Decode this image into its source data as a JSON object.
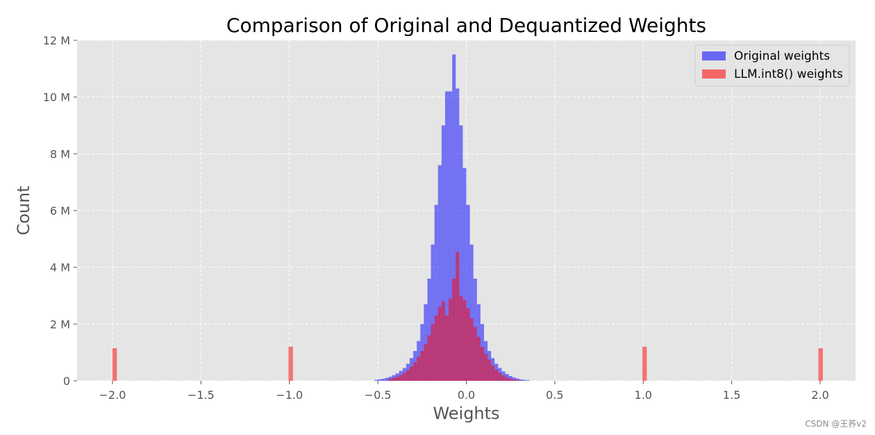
{
  "watermark": "CSDN @王荞v2",
  "chart_data": {
    "type": "histogram",
    "title": "Comparison of Original and Dequantized Weights",
    "xlabel": "Weights",
    "ylabel": "Count",
    "xlim": [
      -2.2,
      2.2
    ],
    "ylim": [
      0,
      12000000
    ],
    "x_ticks": [
      -2.0,
      -1.5,
      -1.0,
      -0.5,
      0.0,
      0.5,
      1.0,
      1.5,
      2.0
    ],
    "x_tick_labels": [
      "−2.0",
      "−1.5",
      "−1.0",
      "−0.5",
      "0.0",
      "0.5",
      "1.0",
      "1.5",
      "2.0"
    ],
    "y_ticks": [
      0,
      2000000,
      4000000,
      6000000,
      8000000,
      10000000,
      12000000
    ],
    "y_tick_labels": [
      "0",
      "2 M",
      "4 M",
      "6 M",
      "8 M",
      "10 M",
      "12 M"
    ],
    "grid": true,
    "legend_position": "top-right",
    "background": "#e5e5e5",
    "series": [
      {
        "name": "Original weights",
        "color": "#0000ff",
        "alpha": 0.5,
        "bins": [
          [
            -0.52,
            -0.5,
            0.03
          ],
          [
            -0.5,
            -0.48,
            0.05
          ],
          [
            -0.48,
            -0.46,
            0.07
          ],
          [
            -0.46,
            -0.44,
            0.1
          ],
          [
            -0.44,
            -0.42,
            0.14
          ],
          [
            -0.42,
            -0.4,
            0.2
          ],
          [
            -0.4,
            -0.38,
            0.26
          ],
          [
            -0.38,
            -0.36,
            0.35
          ],
          [
            -0.36,
            -0.34,
            0.45
          ],
          [
            -0.34,
            -0.32,
            0.6
          ],
          [
            -0.32,
            -0.3,
            0.8
          ],
          [
            -0.3,
            -0.28,
            1.05
          ],
          [
            -0.28,
            -0.26,
            1.4
          ],
          [
            -0.26,
            -0.24,
            2.0
          ],
          [
            -0.24,
            -0.22,
            2.7
          ],
          [
            -0.22,
            -0.2,
            3.6
          ],
          [
            -0.2,
            -0.18,
            4.8
          ],
          [
            -0.18,
            -0.16,
            6.2
          ],
          [
            -0.16,
            -0.14,
            7.6
          ],
          [
            -0.14,
            -0.12,
            9.0
          ],
          [
            -0.12,
            -0.1,
            10.2
          ],
          [
            -0.1,
            -0.08,
            10.2
          ],
          [
            -0.08,
            -0.06,
            11.5
          ],
          [
            -0.06,
            -0.04,
            10.3
          ],
          [
            -0.04,
            -0.02,
            9.0
          ],
          [
            -0.02,
            0.0,
            7.5
          ],
          [
            0.0,
            0.02,
            6.2
          ],
          [
            0.02,
            0.04,
            4.8
          ],
          [
            0.04,
            0.06,
            3.6
          ],
          [
            0.06,
            0.08,
            2.7
          ],
          [
            0.08,
            0.1,
            2.0
          ],
          [
            0.1,
            0.12,
            1.4
          ],
          [
            0.12,
            0.14,
            1.05
          ],
          [
            0.14,
            0.16,
            0.8
          ],
          [
            0.16,
            0.18,
            0.6
          ],
          [
            0.18,
            0.2,
            0.45
          ],
          [
            0.2,
            0.22,
            0.33
          ],
          [
            0.22,
            0.24,
            0.24
          ],
          [
            0.24,
            0.26,
            0.17
          ],
          [
            0.26,
            0.28,
            0.12
          ],
          [
            0.28,
            0.3,
            0.08
          ],
          [
            0.3,
            0.32,
            0.05
          ],
          [
            0.32,
            0.34,
            0.03
          ],
          [
            0.34,
            0.36,
            0.02
          ]
        ]
      },
      {
        "name": "LLM.int8() weights",
        "color": "#ff0000",
        "alpha": 0.5,
        "bins": [
          [
            -2.0,
            -1.975,
            1.15
          ],
          [
            -1.005,
            -0.98,
            1.2
          ],
          [
            0.995,
            1.02,
            1.2
          ],
          [
            1.99,
            2.015,
            1.15
          ],
          [
            -0.44,
            -0.42,
            0.07
          ],
          [
            -0.42,
            -0.4,
            0.1
          ],
          [
            -0.4,
            -0.38,
            0.14
          ],
          [
            -0.38,
            -0.36,
            0.2
          ],
          [
            -0.36,
            -0.34,
            0.28
          ],
          [
            -0.34,
            -0.32,
            0.38
          ],
          [
            -0.32,
            -0.3,
            0.5
          ],
          [
            -0.3,
            -0.28,
            0.65
          ],
          [
            -0.28,
            -0.26,
            0.85
          ],
          [
            -0.26,
            -0.24,
            1.05
          ],
          [
            -0.24,
            -0.22,
            1.3
          ],
          [
            -0.22,
            -0.2,
            1.6
          ],
          [
            -0.2,
            -0.18,
            2.0
          ],
          [
            -0.18,
            -0.16,
            2.3
          ],
          [
            -0.16,
            -0.14,
            2.6
          ],
          [
            -0.14,
            -0.12,
            2.8
          ],
          [
            -0.12,
            -0.1,
            2.3
          ],
          [
            -0.1,
            -0.08,
            2.9
          ],
          [
            -0.08,
            -0.06,
            3.6
          ],
          [
            -0.06,
            -0.04,
            4.55
          ],
          [
            -0.04,
            -0.02,
            3.0
          ],
          [
            -0.02,
            0.0,
            2.85
          ],
          [
            0.0,
            0.02,
            2.55
          ],
          [
            0.02,
            0.04,
            2.2
          ],
          [
            0.04,
            0.06,
            1.9
          ],
          [
            0.06,
            0.08,
            1.55
          ],
          [
            0.08,
            0.1,
            1.2
          ],
          [
            0.1,
            0.12,
            0.95
          ],
          [
            0.12,
            0.14,
            0.75
          ],
          [
            0.14,
            0.16,
            0.55
          ],
          [
            0.16,
            0.18,
            0.4
          ],
          [
            0.18,
            0.2,
            0.28
          ],
          [
            0.2,
            0.22,
            0.19
          ],
          [
            0.22,
            0.24,
            0.12
          ],
          [
            0.24,
            0.26,
            0.08
          ],
          [
            0.26,
            0.28,
            0.05
          ],
          [
            0.28,
            0.3,
            0.03
          ]
        ]
      }
    ]
  }
}
